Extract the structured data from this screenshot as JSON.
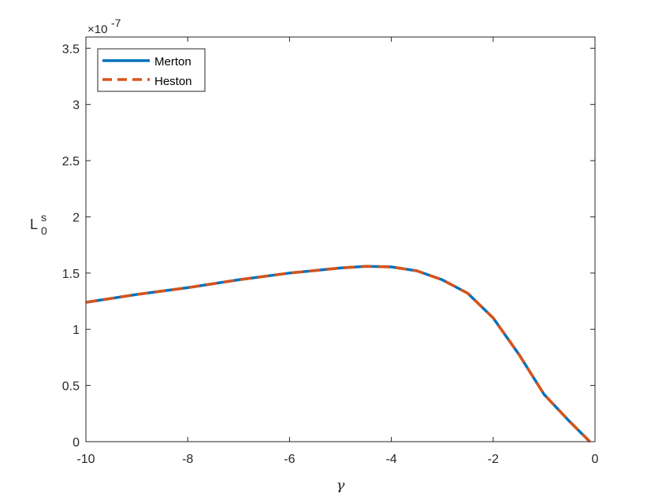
{
  "chart_data": {
    "type": "line",
    "xlabel": "γ",
    "ylabel": {
      "main": "L",
      "subscript": "0",
      "superscript": "s"
    },
    "y_exponent": {
      "prefix": "×10",
      "power": "-7"
    },
    "xlim": [
      -10,
      0
    ],
    "ylim": [
      0,
      3.6
    ],
    "x_ticks": [
      -10,
      -8,
      -6,
      -4,
      -2,
      0
    ],
    "x_tick_labels": [
      "-10",
      "-8",
      "-6",
      "-4",
      "-2",
      "0"
    ],
    "y_ticks": [
      0,
      0.5,
      1,
      1.5,
      2,
      2.5,
      3,
      3.5
    ],
    "y_tick_labels": [
      "0",
      "0.5",
      "1",
      "1.5",
      "2",
      "2.5",
      "3",
      "3.5"
    ],
    "grid": false,
    "legend_position": "top-left",
    "series": [
      {
        "name": "Merton",
        "color": "#0072BD",
        "style": "solid",
        "x": [
          -10,
          -9,
          -8,
          -7,
          -6,
          -5,
          -4.5,
          -4,
          -3.5,
          -3,
          -2.5,
          -2,
          -1.5,
          -1,
          -0.5,
          -0.1
        ],
        "y": [
          1.24,
          1.31,
          1.37,
          1.44,
          1.5,
          1.545,
          1.56,
          1.555,
          1.52,
          1.44,
          1.32,
          1.1,
          0.78,
          0.42,
          0.18,
          0.0
        ]
      },
      {
        "name": "Heston",
        "color": "#D95319",
        "style": "dashed",
        "x": [
          -10,
          -9,
          -8,
          -7,
          -6,
          -5,
          -4.5,
          -4,
          -3.5,
          -3,
          -2.5,
          -2,
          -1.5,
          -1,
          -0.5,
          -0.1
        ],
        "y": [
          1.24,
          1.31,
          1.37,
          1.44,
          1.5,
          1.545,
          1.56,
          1.555,
          1.52,
          1.44,
          1.32,
          1.1,
          0.78,
          0.42,
          0.18,
          0.0
        ]
      }
    ]
  }
}
